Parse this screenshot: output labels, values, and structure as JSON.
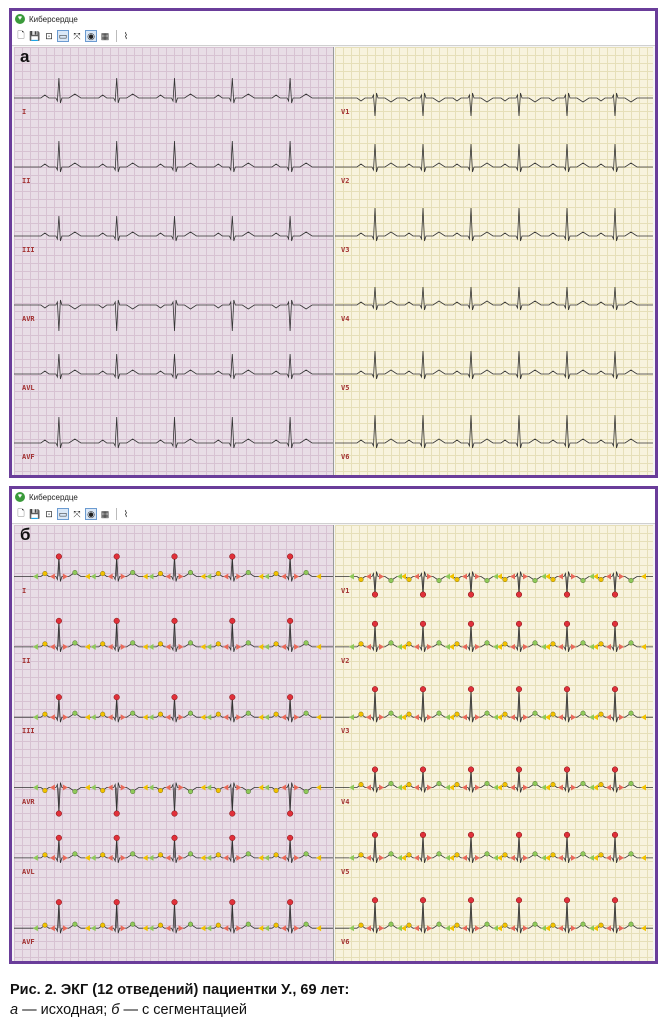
{
  "window_title": "Киберсердце",
  "toolbar": [
    {
      "icon": "new-document-icon",
      "glyph": "🗋"
    },
    {
      "icon": "save-icon",
      "glyph": "💾"
    },
    {
      "icon": "export-icon",
      "glyph": "⊡"
    },
    {
      "icon": "window-icon",
      "glyph": "▭"
    },
    {
      "icon": "fit-icon",
      "glyph": "⤧"
    },
    {
      "icon": "view-icon",
      "glyph": "◉"
    },
    {
      "icon": "grid-icon",
      "glyph": "▦"
    },
    {
      "icon": "waveform-icon",
      "glyph": "⌇"
    }
  ],
  "panels": [
    {
      "letter": "а",
      "segmented": false,
      "left_leads": [
        "I",
        "II",
        "III",
        "AVR",
        "AVL",
        "AVF"
      ],
      "right_leads": [
        "V1",
        "V2",
        "V3",
        "V4",
        "V5",
        "V6"
      ]
    },
    {
      "letter": "б",
      "segmented": true,
      "left_leads": [
        "I",
        "II",
        "III",
        "AVR",
        "AVL",
        "AVF"
      ],
      "right_leads": [
        "V1",
        "V2",
        "V3",
        "V4",
        "V5",
        "V6"
      ]
    }
  ],
  "colors": {
    "frame": "#6a3d9a",
    "limb_background": "#e8dde6",
    "chest_background": "#f8f3de",
    "trace": "#333333",
    "r_marker": "#e0303a",
    "p_marker": "#f2c200",
    "t_marker": "#8fc95a",
    "q_marker": "#e96a5a"
  },
  "caption": {
    "line1": "Рис. 2. ЭКГ (12 отведений) пациентки У., 69 лет:",
    "a_letter": "а",
    "a_text": " — исходная; ",
    "b_letter": "б",
    "b_text": " — с сегментацией"
  }
}
